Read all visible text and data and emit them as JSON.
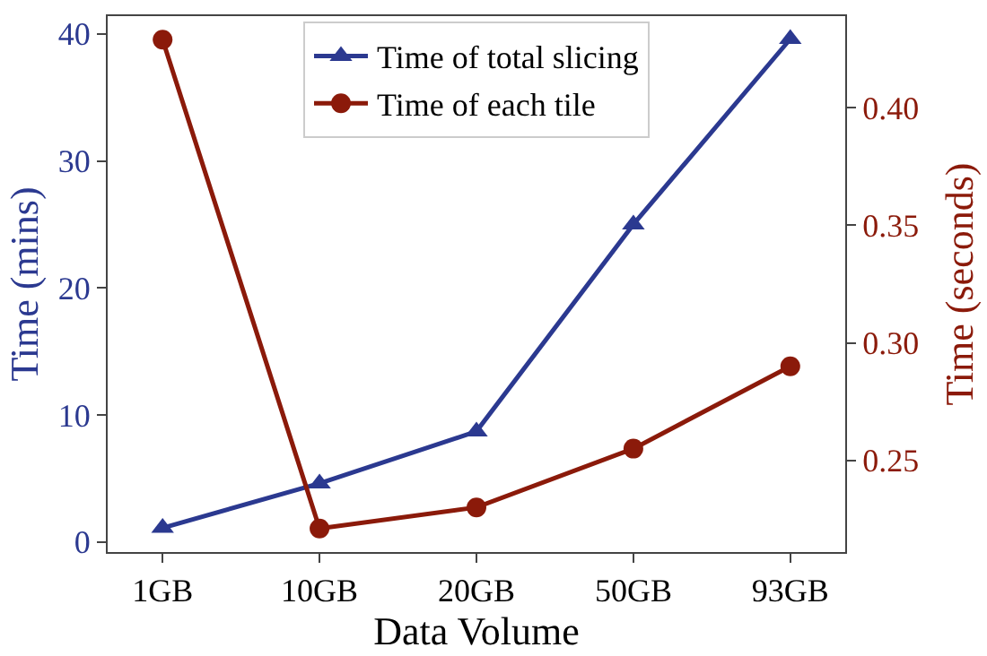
{
  "chart_data": {
    "type": "line",
    "xlabel": "Data Volume",
    "ylabel": "Time (mins)",
    "y2label": "Time (seconds)",
    "categories": [
      "1GB",
      "10GB",
      "20GB",
      "50GB",
      "93GB"
    ],
    "series": [
      {
        "name": "Time of total slicing",
        "color": "#2b3990",
        "values": [
          1.1,
          4.6,
          8.7,
          25,
          39.6
        ],
        "marker": "triangle"
      },
      {
        "name": "Time of each tile",
        "color": "#8b1a0a",
        "values": [
          0.429,
          0.221,
          0.23,
          0.255,
          0.29
        ],
        "marker": "circle",
        "axis": "y2"
      }
    ],
    "ylim": [
      -0.8,
      41.4
    ],
    "yticks": [
      0,
      10,
      20,
      30,
      40
    ],
    "y2lim": [
      0.211,
      0.439
    ],
    "y2ticks": [
      0.25,
      {
        "value": 0.3,
        "label": "0.30"
      },
      0.35,
      {
        "value": 0.4,
        "label": "0.40"
      }
    ],
    "legend": "top",
    "line_style": "solid"
  }
}
